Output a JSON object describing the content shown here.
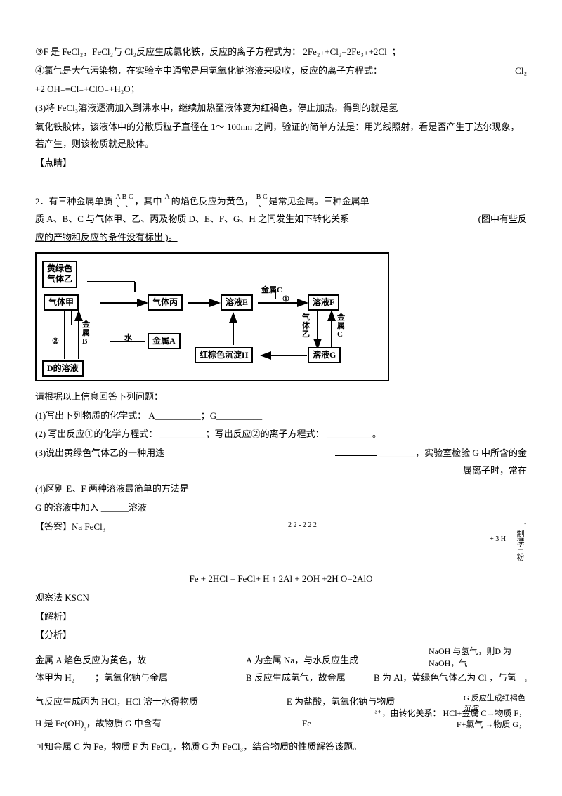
{
  "top": {
    "p1": "③F 是 FeCl₂，FeCl₂与 Cl₂反应生成氯化铁，反应的离子方程式为： 2Fe₂₊+Cl₂=2Fe₃₊+2Cl₋；",
    "p2a": "④氯气是大气污染物，在实验室中通常是用氢氧化钠溶液来吸收，反应的离子方程式：",
    "p2b": "Cl₂",
    "p3": "+2 OH₋=Cl₋+ClO₋+H₂O；",
    "p4": "(3)将 FeCl₃溶液逐滴加入到沸水中，继续加热至液体变为红褐色，停止加热，得到的就是氢",
    "p5": "氧化铁胶体，该液体中的分散质粒子直径在 1～ 100nm 之间，验证的简单方法是：用光线照射，看是否产生丁达尔现象，若产生，则该物质就是胶体。",
    "p6": "【点睛】"
  },
  "q2": {
    "intro1_a": "2．有三种金属单质",
    "intro1_b": "，其中",
    "intro1_c": "的焰色反应为黄色，",
    "intro1_d": "是常见金属。三种金属单",
    "stackABC_top": "A   B  C",
    "stackABC_bot": "、 、",
    "stackA_top": "A",
    "stackBC_top": "B   C",
    "stackBC_bot": "、",
    "intro2_a": "质 A、B、C 与气体甲、乙、丙及物质    D、E、F、G、H 之间发生如下转化关系",
    "intro2_b": "(图中有些反",
    "intro3": "应的产物和反应的条件没有标出     )。"
  },
  "diagram": {
    "box_yellow": "黄绿色\n气体乙",
    "box_jia": "气体甲",
    "box_bing": "气体丙",
    "box_E": "溶液E",
    "box_F": "溶液F",
    "box_A": "金属A",
    "box_H": "红棕色沉淀H",
    "box_G": "溶液G",
    "box_D": "D的溶液",
    "lbl_jinshuC": "金属C",
    "lbl_1": "①",
    "lbl_qiti_yi": "气\n体\n乙",
    "lbl_jinshu_c2": "金\n属\nC",
    "lbl_jinshu_b": "金\n属\nB",
    "lbl_2": "②",
    "lbl_shui": "水"
  },
  "questions": {
    "q_intro": "请根据以上信息回答下列问题：",
    "q1": "(1)写出下列物质的化学式：    A__________；G__________",
    "q2": "(2) 写出反应①的化学方程式：   __________；写出反应②的离子方程式：   __________。",
    "q3_a": "(3)说出黄绿色气体乙的一种用途",
    "q3_b": "________，实验室检验  G 中所含的金属离子时，常在",
    "q4": "(4)区别 E、F 两种溶液最简单的方法是",
    "q5": "G 的溶液中加入 ______溶液"
  },
  "answer": {
    "ans_label": "【答案】Na  FeCl₃",
    "scatter_a": "2   2        -                                         2                 2     2",
    "scatter_b": "↑",
    "scatter_c": "+ 3 H",
    "scatter_d": "制漂白粉",
    "mid": "Fe + 2HCl = FeCl+ H  ↑   2Al + 2OH +2H O=2AlO",
    "obs": "观察法   KSCN",
    "jiexi": "【解析】",
    "fenxi": "【分析】"
  },
  "analysis": {
    "r1_a": "金属 A 焰色反应为黄色，故",
    "r1_b": "A 为金属  Na，与水反应生成",
    "r1_c": "NaOH 与氢气，则D 为 NaOH，气",
    "r2_a": "体甲为  H₂",
    "r2_b": "；氢氧化钠与金属",
    "r2_c": "B 反应生成氢气，故金属",
    "r2_d": "B 为 Al，黄绿色气体乙为  Cl  ，与氢",
    "r2_e": "₂",
    "r3_a": "气反应生成丙为   HCl，HCl 溶于水得物质",
    "r3_b": "E 为盐酸，氢氧化钠与物质",
    "r3_c": "G 反应生成红褐色沉淀",
    "r4_a": "H 是 Fe(OH)",
    "r4_b": "₃",
    "r4_c": "，故物质  G 中含有",
    "r4_d": "Fe",
    "r4_e": "³⁺，由转化关系：  HCl+金属 C→物质 F，",
    "r4_f": "F+氯气 →物质 G，",
    "r5": "可知金属  C 为 Fe，物质 F 为 FeCl₂，物质  G 为 FeCl₃，结合物质的性质解答该题。"
  }
}
